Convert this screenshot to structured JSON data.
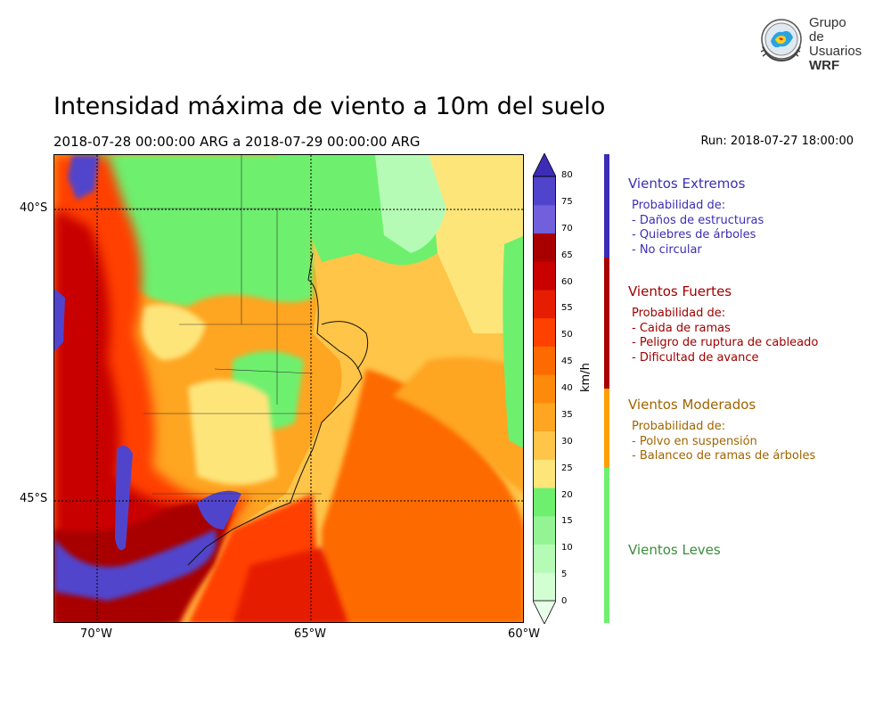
{
  "header": {
    "title": "Intensidad máxima de viento a 10m del suelo",
    "period": "2018-07-28 00:00:00 ARG  a  2018-07-29 00:00:00 ARG",
    "run": "Run: 2018-07-27 18:00:00"
  },
  "logo": {
    "line1": "Grupo de",
    "line2": "Usuarios",
    "line3": "WRF"
  },
  "map": {
    "lat_labels": [
      "40°S",
      "45°S"
    ],
    "lon_labels": [
      "70°W",
      "65°W",
      "60°W"
    ]
  },
  "colorbar": {
    "unit": "km/h",
    "ticks": [
      "80",
      "75",
      "70",
      "65",
      "60",
      "55",
      "50",
      "45",
      "40",
      "35",
      "30",
      "25",
      "20",
      "15",
      "10",
      "5",
      "0"
    ],
    "colors": [
      "#e8ffe8",
      "#d2ffd2",
      "#b5fbb5",
      "#94f494",
      "#6ef06e",
      "#fee57a",
      "#fec548",
      "#fea521",
      "#fe8a0c",
      "#fd6b00",
      "#ff4100",
      "#e61d00",
      "#c80000",
      "#a80000",
      "#7060dc",
      "#5144cc",
      "#3d2cb6"
    ]
  },
  "categories": [
    {
      "title": "Vientos Extremos",
      "color": "#3c2db5",
      "lines": [
        "Probabilidad de:",
        "- Daños de estructuras",
        "- Quiebres de árboles",
        "- No circular"
      ]
    },
    {
      "title": "Vientos Fuertes",
      "color": "#a00000",
      "lines": [
        "Probabilidad de:",
        "- Caida de ramas",
        "- Peligro de ruptura de cableado",
        "- Dificultad de avance"
      ]
    },
    {
      "title": "Vientos Moderados",
      "color": "#a06400",
      "lines": [
        "Probabilidad de:",
        "- Polvo en suspensión",
        "- Balanceo de ramas de árboles"
      ]
    },
    {
      "title": "Vientos Leves",
      "color": "#3c8c3c",
      "lines": []
    }
  ]
}
